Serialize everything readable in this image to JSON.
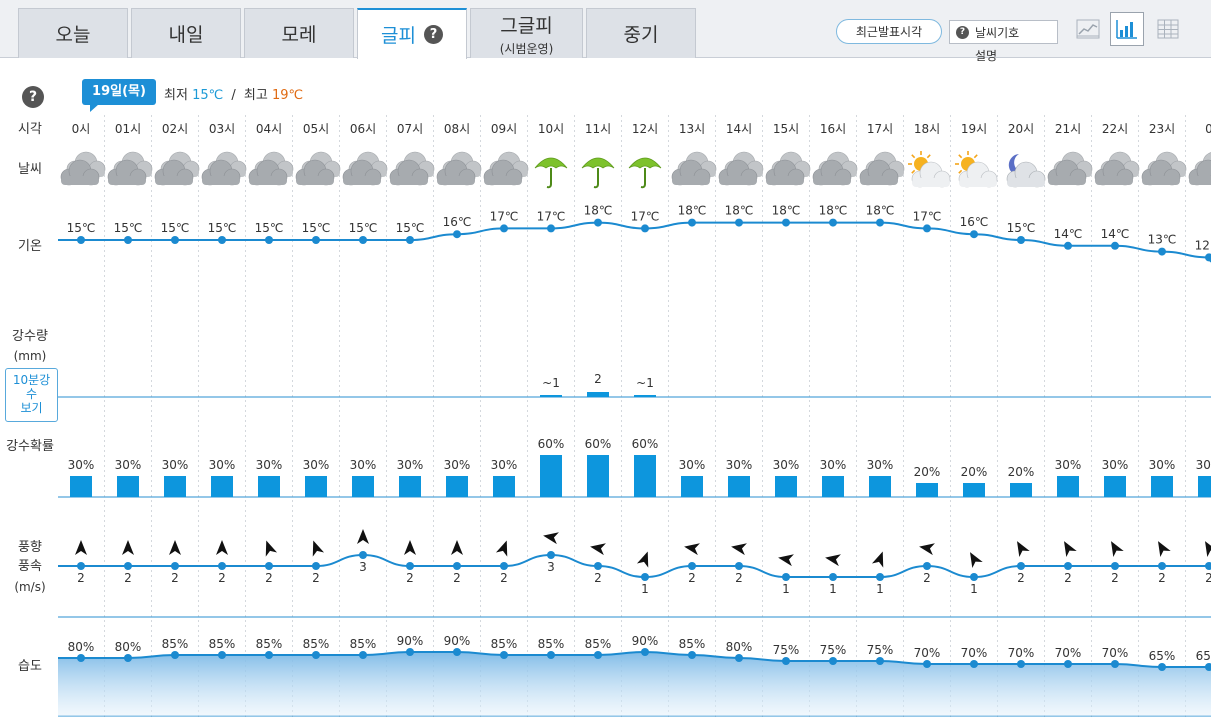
{
  "tabs": [
    {
      "label": "오늘",
      "sub": ""
    },
    {
      "label": "내일",
      "sub": ""
    },
    {
      "label": "모레",
      "sub": ""
    },
    {
      "label": "글피",
      "sub": ""
    },
    {
      "label": "그글피",
      "sub": "(시범운영)"
    },
    {
      "label": "중기",
      "sub": ""
    }
  ],
  "active_tab": 3,
  "active_tab_help": "?",
  "toolbar": {
    "recent_label": "최근발표시각",
    "symbol_label": "날씨기호",
    "symbol_help": "?",
    "desc_label": "설명",
    "views": [
      "line-chart-icon",
      "bar-chart-icon",
      "table-icon"
    ],
    "active_view": 1
  },
  "labels": {
    "help": "?",
    "time": "시각",
    "weather": "날씨",
    "temp": "기온",
    "precip_line1": "강수량",
    "precip_line2": "(mm)",
    "rain10_line1": "10분강",
    "rain10_line2": "수",
    "rain10_line3": "보기",
    "prob": "강수확률",
    "wind_dir": "풍향",
    "wind_speed": "풍속",
    "wind_unit": "(m/s)",
    "humidity": "습도"
  },
  "date": {
    "badge": "19일(목)",
    "min_label": "최저",
    "min_value": "15℃",
    "separator": "/",
    "max_label": "최고",
    "max_value": "19℃"
  },
  "colors": {
    "accent": "#1d8fd6",
    "line": "#1b8ad0",
    "bar": "#0d96dd",
    "min_temp": "#1d9ad6",
    "max_temp": "#e06a12"
  },
  "hours": [
    "0시",
    "01시",
    "02시",
    "03시",
    "04시",
    "05시",
    "06시",
    "07시",
    "08시",
    "09시",
    "10시",
    "11시",
    "12시",
    "13시",
    "14시",
    "15시",
    "16시",
    "17시",
    "18시",
    "19시",
    "20시",
    "21시",
    "22시",
    "23시",
    "0"
  ],
  "weather": [
    "cloudy",
    "cloudy",
    "cloudy",
    "cloudy",
    "cloudy",
    "cloudy",
    "cloudy",
    "cloudy",
    "cloudy",
    "cloudy",
    "rain",
    "rain",
    "rain",
    "cloudy",
    "cloudy",
    "cloudy",
    "cloudy",
    "cloudy",
    "partly-cloudy-day",
    "partly-cloudy-day",
    "cloudy-night",
    "cloudy",
    "cloudy",
    "cloudy",
    "cloudy"
  ],
  "temperature": [
    15,
    15,
    15,
    15,
    15,
    15,
    15,
    15,
    16,
    17,
    17,
    18,
    17,
    18,
    18,
    18,
    18,
    18,
    17,
    16,
    15,
    14,
    14,
    13,
    12
  ],
  "temperature_unit": "℃",
  "precipitation": [
    "",
    "",
    "",
    "",
    "",
    "",
    "",
    "",
    "",
    "",
    "~1",
    "2",
    "~1",
    "",
    "",
    "",
    "",
    "",
    "",
    "",
    "",
    "",
    "",
    "",
    ""
  ],
  "precip_probability": [
    30,
    30,
    30,
    30,
    30,
    30,
    30,
    30,
    30,
    30,
    60,
    60,
    60,
    30,
    30,
    30,
    30,
    30,
    20,
    20,
    20,
    30,
    30,
    30,
    30
  ],
  "wind_direction_deg": [
    0,
    0,
    0,
    0,
    -20,
    -20,
    0,
    0,
    0,
    20,
    -80,
    -80,
    20,
    -80,
    -80,
    -80,
    -80,
    20,
    -80,
    -30,
    -30,
    -30,
    -30,
    -30,
    -30
  ],
  "wind_speed": [
    2,
    2,
    2,
    2,
    2,
    2,
    3,
    2,
    2,
    2,
    3,
    2,
    1,
    2,
    2,
    1,
    1,
    1,
    2,
    1,
    2,
    2,
    2,
    2,
    2
  ],
  "humidity": [
    80,
    80,
    85,
    85,
    85,
    85,
    85,
    90,
    90,
    85,
    85,
    85,
    90,
    85,
    80,
    75,
    75,
    75,
    70,
    70,
    70,
    70,
    70,
    65,
    65
  ],
  "percent_unit": "%"
}
